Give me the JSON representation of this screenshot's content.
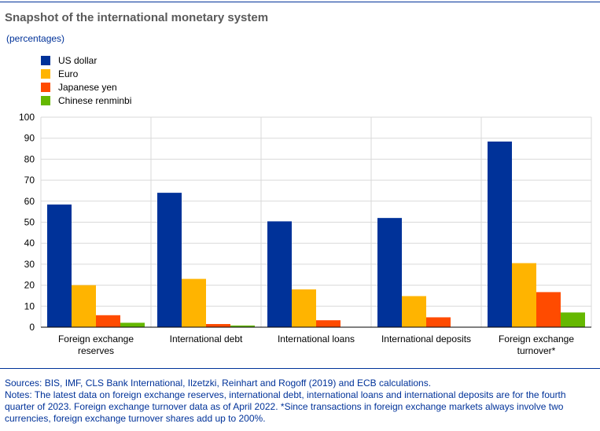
{
  "chart_data": {
    "type": "bar",
    "title": "Snapshot of the international monetary system",
    "subtitle": "(percentages)",
    "categories": [
      "Foreign exchange reserves",
      "International debt",
      "International loans",
      "International deposits",
      "Foreign exchange turnover*"
    ],
    "category_lines": [
      [
        "Foreign exchange",
        "reserves"
      ],
      [
        "International debt"
      ],
      [
        "International loans"
      ],
      [
        "International deposits"
      ],
      [
        "Foreign exchange",
        "turnover*"
      ]
    ],
    "series": [
      {
        "name": "US dollar",
        "color": "#003299",
        "values": [
          58.4,
          64,
          50.4,
          52,
          88.4
        ]
      },
      {
        "name": "Euro",
        "color": "#ffb400",
        "values": [
          20,
          23,
          18,
          14.8,
          30.5
        ]
      },
      {
        "name": "Japanese yen",
        "color": "#ff4b00",
        "values": [
          5.7,
          1.5,
          3.3,
          4.7,
          16.7
        ]
      },
      {
        "name": "Chinese renminbi",
        "color": "#65b800",
        "values": [
          2.1,
          0.8,
          0,
          0,
          7
        ]
      }
    ],
    "ylim": [
      0,
      100
    ],
    "yticks": [
      "0",
      "10",
      "20",
      "30",
      "40",
      "50",
      "60",
      "70",
      "80",
      "90",
      "100"
    ],
    "grid": true,
    "legend": "top-left"
  },
  "footer": {
    "sources": "Sources: BIS, IMF, CLS Bank International, Ilzetzki, Reinhart and Rogoff (2019) and ECB calculations.",
    "notes": "Notes: The latest data on foreign exchange reserves, international debt, international loans and international deposits are for the fourth quarter of 2023. Foreign exchange turnover data as of April 2022. *Since transactions in foreign exchange markets always involve two currencies, foreign exchange turnover shares add up to 200%."
  }
}
